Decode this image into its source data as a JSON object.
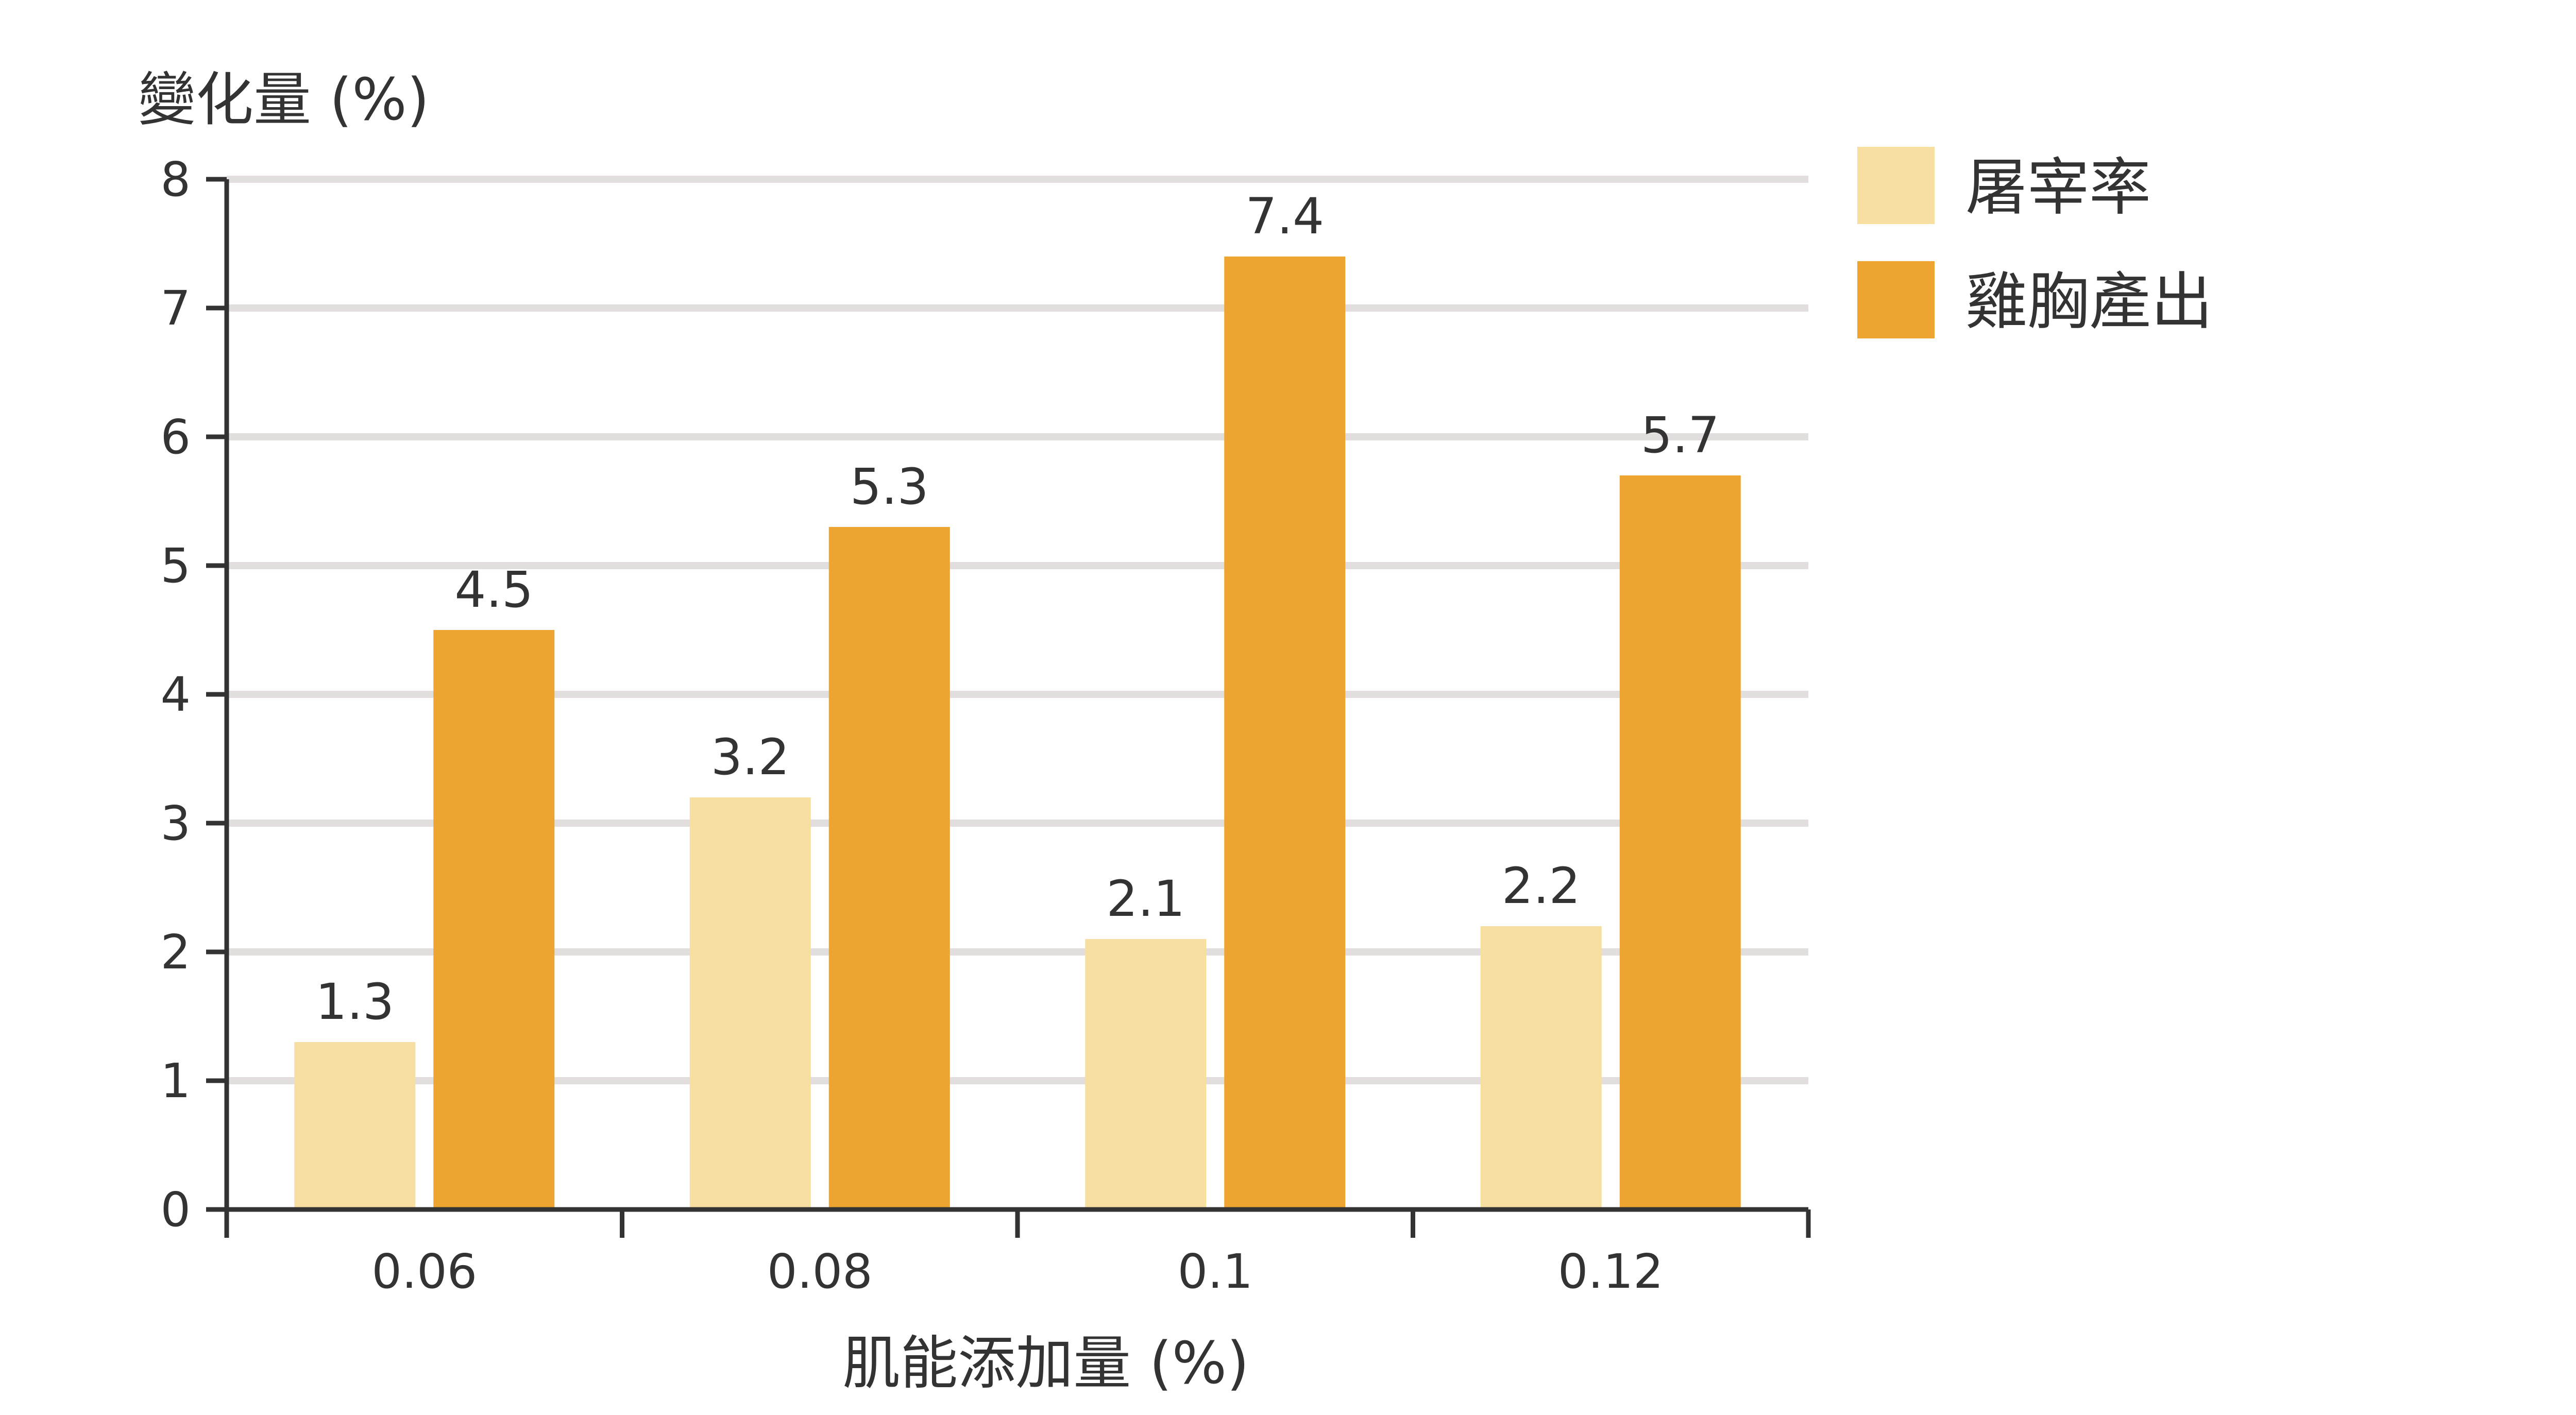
{
  "chart_data": {
    "type": "bar",
    "categories": [
      "0.06",
      "0.08",
      "0.1",
      "0.12"
    ],
    "series": [
      {
        "name": "屠宰率",
        "color": "#f6dfa0",
        "values": [
          1.3,
          3.2,
          2.1,
          2.2
        ]
      },
      {
        "name": "雞胸產出",
        "color": "#eea431",
        "values": [
          4.5,
          5.3,
          7.4,
          5.7
        ]
      }
    ],
    "title": "",
    "ylabel": "變化量 (%)",
    "xlabel": "肌能添加量 (%)",
    "ylim": [
      0,
      8
    ],
    "yticks": [
      0,
      1,
      2,
      3,
      4,
      5,
      6,
      7,
      8
    ],
    "grid": true,
    "legend_position": "top-right"
  }
}
